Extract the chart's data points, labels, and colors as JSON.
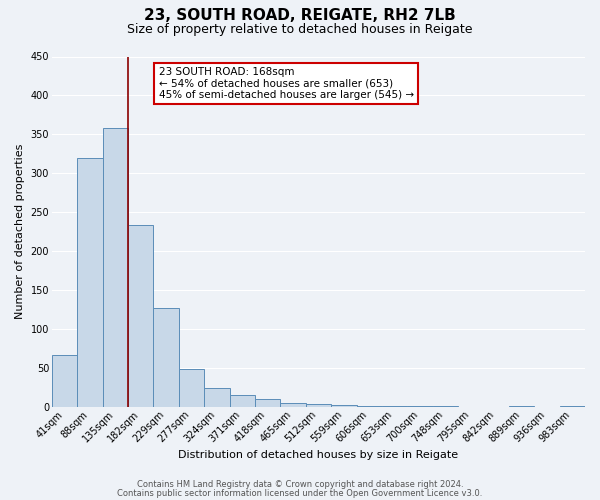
{
  "title1": "23, SOUTH ROAD, REIGATE, RH2 7LB",
  "title2": "Size of property relative to detached houses in Reigate",
  "xlabel": "Distribution of detached houses by size in Reigate",
  "ylabel": "Number of detached properties",
  "bin_labels": [
    "41sqm",
    "88sqm",
    "135sqm",
    "182sqm",
    "229sqm",
    "277sqm",
    "324sqm",
    "371sqm",
    "418sqm",
    "465sqm",
    "512sqm",
    "559sqm",
    "606sqm",
    "653sqm",
    "700sqm",
    "748sqm",
    "795sqm",
    "842sqm",
    "889sqm",
    "936sqm",
    "983sqm"
  ],
  "bar_values": [
    67,
    320,
    358,
    234,
    127,
    48,
    24,
    15,
    10,
    5,
    3,
    2,
    1,
    1,
    1,
    1,
    0,
    0,
    1,
    0,
    1
  ],
  "bar_color": "#c8d8e8",
  "bar_edge_color": "#5b8db8",
  "vline_color": "#8b0000",
  "vline_pos": 2.5,
  "annotation_title": "23 SOUTH ROAD: 168sqm",
  "annotation_line1": "← 54% of detached houses are smaller (653)",
  "annotation_line2": "45% of semi-detached houses are larger (545) →",
  "annotation_box_facecolor": "#ffffff",
  "annotation_box_edgecolor": "#cc0000",
  "ylim": [
    0,
    450
  ],
  "yticks": [
    0,
    50,
    100,
    150,
    200,
    250,
    300,
    350,
    400,
    450
  ],
  "footer1": "Contains HM Land Registry data © Crown copyright and database right 2024.",
  "footer2": "Contains public sector information licensed under the Open Government Licence v3.0.",
  "bg_color": "#eef2f7",
  "grid_color": "#ffffff",
  "title1_fontsize": 11,
  "title2_fontsize": 9,
  "tick_fontsize": 7,
  "axis_label_fontsize": 8,
  "footer_fontsize": 6
}
